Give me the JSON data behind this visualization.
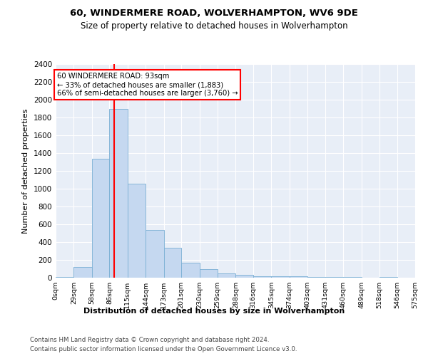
{
  "title": "60, WINDERMERE ROAD, WOLVERHAMPTON, WV6 9DE",
  "subtitle": "Size of property relative to detached houses in Wolverhampton",
  "xlabel": "Distribution of detached houses by size in Wolverhampton",
  "ylabel": "Number of detached properties",
  "bar_color": "#c5d8f0",
  "bar_edge_color": "#7aafd4",
  "background_color": "#e8eef7",
  "property_size": 93,
  "annotation_text": "60 WINDERMERE ROAD: 93sqm\n← 33% of detached houses are smaller (1,883)\n66% of semi-detached houses are larger (3,760) →",
  "vline_x": 93,
  "categories": [
    "0sqm",
    "29sqm",
    "58sqm",
    "86sqm",
    "115sqm",
    "144sqm",
    "173sqm",
    "201sqm",
    "230sqm",
    "259sqm",
    "288sqm",
    "316sqm",
    "345sqm",
    "374sqm",
    "403sqm",
    "431sqm",
    "460sqm",
    "489sqm",
    "518sqm",
    "546sqm",
    "575sqm"
  ],
  "bin_edges": [
    0,
    29,
    58,
    86,
    115,
    144,
    173,
    201,
    230,
    259,
    288,
    316,
    345,
    374,
    403,
    431,
    460,
    489,
    518,
    546,
    575
  ],
  "values": [
    5,
    120,
    1340,
    1900,
    1060,
    540,
    340,
    165,
    100,
    50,
    30,
    20,
    20,
    15,
    5,
    5,
    5,
    0,
    5,
    0,
    5
  ],
  "ylim": [
    0,
    2400
  ],
  "yticks": [
    0,
    200,
    400,
    600,
    800,
    1000,
    1200,
    1400,
    1600,
    1800,
    2000,
    2200,
    2400
  ],
  "footer1": "Contains HM Land Registry data © Crown copyright and database right 2024.",
  "footer2": "Contains public sector information licensed under the Open Government Licence v3.0."
}
